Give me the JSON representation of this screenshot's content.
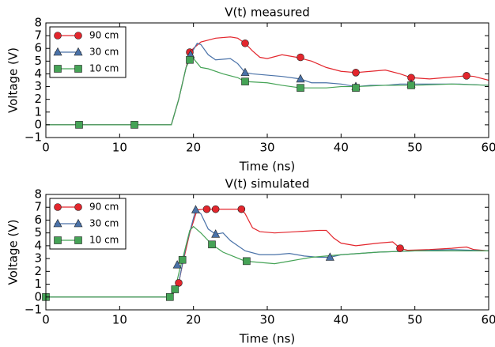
{
  "chart_data": [
    {
      "type": "line",
      "title": "V(t) measured",
      "x_label": "Time (ns)",
      "y_label": "Voltage (V)",
      "xlim": [
        0,
        60
      ],
      "xticks": [
        0,
        10,
        20,
        30,
        40,
        50,
        60
      ],
      "ylim": [
        -1,
        8
      ],
      "yticks": [
        {
          "value": -1,
          "label": "−1"
        },
        0,
        1,
        2,
        3,
        4,
        5,
        6,
        7,
        8
      ],
      "legend": "upper left",
      "series": [
        {
          "name": "90 cm",
          "color": "#e3262d",
          "marker": "circle",
          "x": [
            0,
            17,
            18,
            19,
            19.5,
            20,
            21,
            23,
            25,
            26,
            27,
            28,
            29,
            30,
            32,
            34,
            36,
            38,
            40,
            42,
            44,
            46,
            48,
            49.5,
            52,
            54,
            56,
            57,
            58,
            60
          ],
          "values": [
            0,
            0,
            2,
            4.5,
            5.7,
            6,
            6.5,
            6.8,
            6.9,
            6.8,
            6.4,
            5.8,
            5.3,
            5.2,
            5.5,
            5.3,
            5.0,
            4.5,
            4.2,
            4.1,
            4.2,
            4.3,
            4.0,
            3.7,
            3.6,
            3.7,
            3.8,
            3.85,
            3.8,
            3.5
          ],
          "markers": {
            "x": [
              19.5,
              27,
              34.5,
              42,
              49.5,
              57
            ],
            "values": [
              5.7,
              6.4,
              5.3,
              4.1,
              3.7,
              3.85
            ]
          }
        },
        {
          "name": "30 cm",
          "color": "#4a72a8",
          "marker": "triangle",
          "x": [
            0,
            17,
            18,
            19,
            19.7,
            20.5,
            21,
            22,
            23,
            25,
            26,
            27,
            28,
            30,
            32,
            34.5,
            36,
            38,
            40,
            42,
            44,
            46,
            48,
            50,
            52,
            56,
            60
          ],
          "values": [
            0,
            0,
            2,
            4.5,
            5.6,
            6.4,
            6.3,
            5.5,
            5.1,
            5.2,
            4.8,
            4.1,
            4.0,
            3.9,
            3.8,
            3.6,
            3.3,
            3.3,
            3.2,
            3.0,
            3.1,
            3.1,
            3.2,
            3.2,
            3.2,
            3.2,
            3.1
          ],
          "markers": {
            "x": [
              19.6,
              27,
              34.5,
              42,
              49.5
            ],
            "values": [
              5.5,
              4.1,
              3.6,
              3.0,
              3.2
            ]
          }
        },
        {
          "name": "10 cm",
          "color": "#45a356",
          "marker": "square",
          "x": [
            0,
            17,
            18,
            19,
            19.5,
            20,
            21,
            22,
            24,
            26,
            27,
            30,
            32,
            34.5,
            36,
            38,
            40,
            42,
            46,
            50,
            55,
            60
          ],
          "values": [
            0,
            0,
            2,
            4.5,
            5.1,
            5.2,
            4.5,
            4.4,
            4.0,
            3.7,
            3.4,
            3.3,
            3.1,
            2.9,
            2.9,
            2.9,
            3.0,
            3.0,
            3.1,
            3.1,
            3.2,
            3.1
          ],
          "markers": {
            "x": [
              4.5,
              12,
              19.5,
              27,
              34.5,
              42,
              49.5
            ],
            "values": [
              0,
              0,
              5.1,
              3.4,
              2.9,
              2.9,
              3.1
            ]
          }
        }
      ]
    },
    {
      "type": "line",
      "title": "V(t) simulated",
      "x_label": "Time (ns)",
      "y_label": "Voltage (V)",
      "xlim": [
        0,
        60
      ],
      "xticks": [
        0,
        10,
        20,
        30,
        40,
        50,
        60
      ],
      "ylim": [
        -1,
        8
      ],
      "yticks": [
        {
          "value": -1,
          "label": "−1"
        },
        0,
        1,
        2,
        3,
        4,
        5,
        6,
        7,
        8
      ],
      "legend": "upper left",
      "series": [
        {
          "name": "90 cm",
          "color": "#e3262d",
          "marker": "circle",
          "x": [
            0,
            17,
            17.5,
            18,
            18.5,
            19.5,
            20.5,
            21.5,
            23,
            26.5,
            27,
            28,
            29,
            31,
            34,
            37,
            38,
            39,
            40,
            42,
            45,
            47,
            48,
            49,
            52,
            55,
            57,
            58,
            60
          ],
          "values": [
            0,
            0,
            0.5,
            1.1,
            2.5,
            5,
            6.8,
            6.85,
            6.85,
            6.85,
            6.5,
            5.4,
            5.1,
            5.0,
            5.1,
            5.2,
            5.2,
            4.6,
            4.2,
            4.0,
            4.2,
            4.3,
            3.8,
            3.65,
            3.7,
            3.8,
            3.9,
            3.7,
            3.6
          ],
          "markers": {
            "x": [
              18,
              21.8,
              23,
              26.5,
              48
            ],
            "values": [
              1.1,
              6.85,
              6.85,
              6.85,
              3.8
            ]
          }
        },
        {
          "name": "30 cm",
          "color": "#4a72a8",
          "marker": "triangle",
          "x": [
            0,
            17,
            18,
            19,
            20.3,
            21,
            22,
            23,
            24,
            25,
            27,
            29,
            31,
            33,
            35,
            37,
            38.5,
            40,
            45,
            50,
            55,
            60
          ],
          "values": [
            0,
            0,
            1.1,
            4,
            6.8,
            6.5,
            5.3,
            4.9,
            5.0,
            4.4,
            3.6,
            3.3,
            3.3,
            3.4,
            3.2,
            3.1,
            3.1,
            3.3,
            3.5,
            3.6,
            3.7,
            3.6
          ],
          "markers": {
            "x": [
              17.8,
              20.3,
              23,
              38.5
            ],
            "values": [
              2.5,
              6.8,
              4.9,
              3.1
            ]
          }
        },
        {
          "name": "10 cm",
          "color": "#45a356",
          "marker": "square",
          "x": [
            0,
            16.8,
            17.5,
            18.2,
            18.5,
            19.5,
            20,
            21,
            22.5,
            24,
            27,
            29,
            31,
            33,
            36,
            40,
            45,
            50,
            55,
            60
          ],
          "values": [
            0,
            0,
            0.6,
            2.3,
            2.9,
            5.2,
            5.5,
            5.0,
            4.1,
            3.5,
            2.8,
            2.7,
            2.6,
            2.8,
            3.1,
            3.3,
            3.5,
            3.6,
            3.6,
            3.6
          ],
          "markers": {
            "x": [
              0,
              16.8,
              17.5,
              18.5,
              22.5,
              27.2
            ],
            "values": [
              0,
              0,
              0.6,
              2.9,
              4.1,
              2.8
            ]
          }
        }
      ]
    }
  ]
}
